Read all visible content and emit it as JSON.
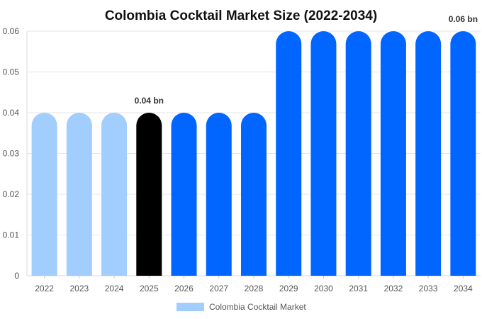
{
  "chart_data": {
    "type": "bar",
    "title": "Colombia Cocktail Market Size (2022-2034)",
    "xlabel": "",
    "ylabel": "",
    "categories": [
      "2022",
      "2023",
      "2024",
      "2025",
      "2026",
      "2027",
      "2028",
      "2029",
      "2030",
      "2031",
      "2032",
      "2033",
      "2034"
    ],
    "series": [
      {
        "name": "Colombia Cocktail Market",
        "values": [
          0.04,
          0.04,
          0.04,
          0.04,
          0.04,
          0.04,
          0.04,
          0.06,
          0.06,
          0.06,
          0.06,
          0.06,
          0.06
        ]
      }
    ],
    "ylim": [
      0,
      0.06
    ],
    "yticks": [
      "0",
      "0.01",
      "0.02",
      "0.03",
      "0.04",
      "0.05",
      "0.06"
    ],
    "grid": true,
    "legend_position": "bottom",
    "bar_colors": [
      "#a1cdff",
      "#a1cdff",
      "#a1cdff",
      "#000000",
      "#0066ff",
      "#0066ff",
      "#0066ff",
      "#0066ff",
      "#0066ff",
      "#0066ff",
      "#0066ff",
      "#0066ff",
      "#0066ff"
    ],
    "annotations": [
      {
        "category": "2025",
        "text": "0.04 bn"
      },
      {
        "category": "2034",
        "text": "0.06 bn"
      }
    ],
    "legend_color": "#a1cdff"
  }
}
